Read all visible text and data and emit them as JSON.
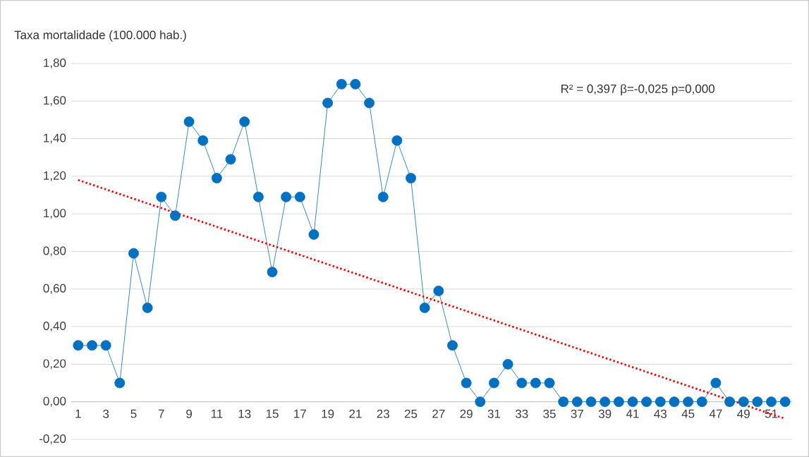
{
  "chart_data": {
    "type": "line",
    "ylabel": "Taxa mortalidade (100.000 hab.)",
    "annotations": [
      "R² = 0,397 β=-0,025 p=0,000"
    ],
    "x": [
      1,
      2,
      3,
      4,
      5,
      6,
      7,
      8,
      9,
      10,
      11,
      12,
      13,
      14,
      15,
      16,
      17,
      18,
      19,
      20,
      21,
      22,
      23,
      24,
      25,
      26,
      27,
      28,
      29,
      30,
      31,
      32,
      33,
      34,
      35,
      36,
      37,
      38,
      39,
      40,
      41,
      42,
      43,
      44,
      45,
      46,
      47,
      48,
      49,
      50,
      51,
      52
    ],
    "series": [
      {
        "color": "#0070c0",
        "marker": "circle",
        "line_style": "solid",
        "values": [
          0.3,
          0.3,
          0.3,
          0.1,
          0.79,
          0.5,
          1.09,
          0.99,
          1.49,
          1.39,
          1.19,
          1.29,
          1.49,
          1.09,
          0.69,
          1.09,
          1.09,
          0.89,
          1.59,
          1.69,
          1.69,
          1.59,
          1.09,
          1.39,
          1.19,
          0.5,
          0.59,
          0.3,
          0.1,
          0.0,
          0.1,
          0.2,
          0.1,
          0.1,
          0.1,
          0.0,
          0.0,
          0.0,
          0.0,
          0.0,
          0.0,
          0.0,
          0.0,
          0.0,
          0.0,
          0.0,
          0.1,
          0.0,
          0.0,
          0.0,
          0.0,
          0.0
        ]
      },
      {
        "type": "line",
        "color": "#ff0000",
        "marker": "none",
        "line_style": "dotted",
        "x": [
          1,
          52
        ],
        "values": [
          1.18,
          -0.09
        ]
      }
    ],
    "xlim": [
      0.5,
      52.5
    ],
    "ylim": [
      -0.2,
      1.8
    ],
    "xticks": [
      1,
      3,
      5,
      7,
      9,
      11,
      13,
      15,
      17,
      19,
      21,
      23,
      25,
      27,
      29,
      31,
      33,
      35,
      37,
      39,
      41,
      43,
      45,
      47,
      49,
      51
    ],
    "yticks": [
      {
        "value": -0.2,
        "label": "-0,20"
      },
      {
        "value": 0,
        "label": "0,00"
      },
      {
        "value": 0.2,
        "label": "0,20"
      },
      {
        "value": 0.4,
        "label": "0,40"
      },
      {
        "value": 0.6,
        "label": "0,60"
      },
      {
        "value": 0.8,
        "label": "0,80"
      },
      {
        "value": 1.0,
        "label": "1,00"
      },
      {
        "value": 1.2,
        "label": "1,20"
      },
      {
        "value": 1.4,
        "label": "1,40"
      },
      {
        "value": 1.6,
        "label": "1,60"
      },
      {
        "value": 1.8,
        "label": "1,80"
      }
    ],
    "grid": "y"
  }
}
